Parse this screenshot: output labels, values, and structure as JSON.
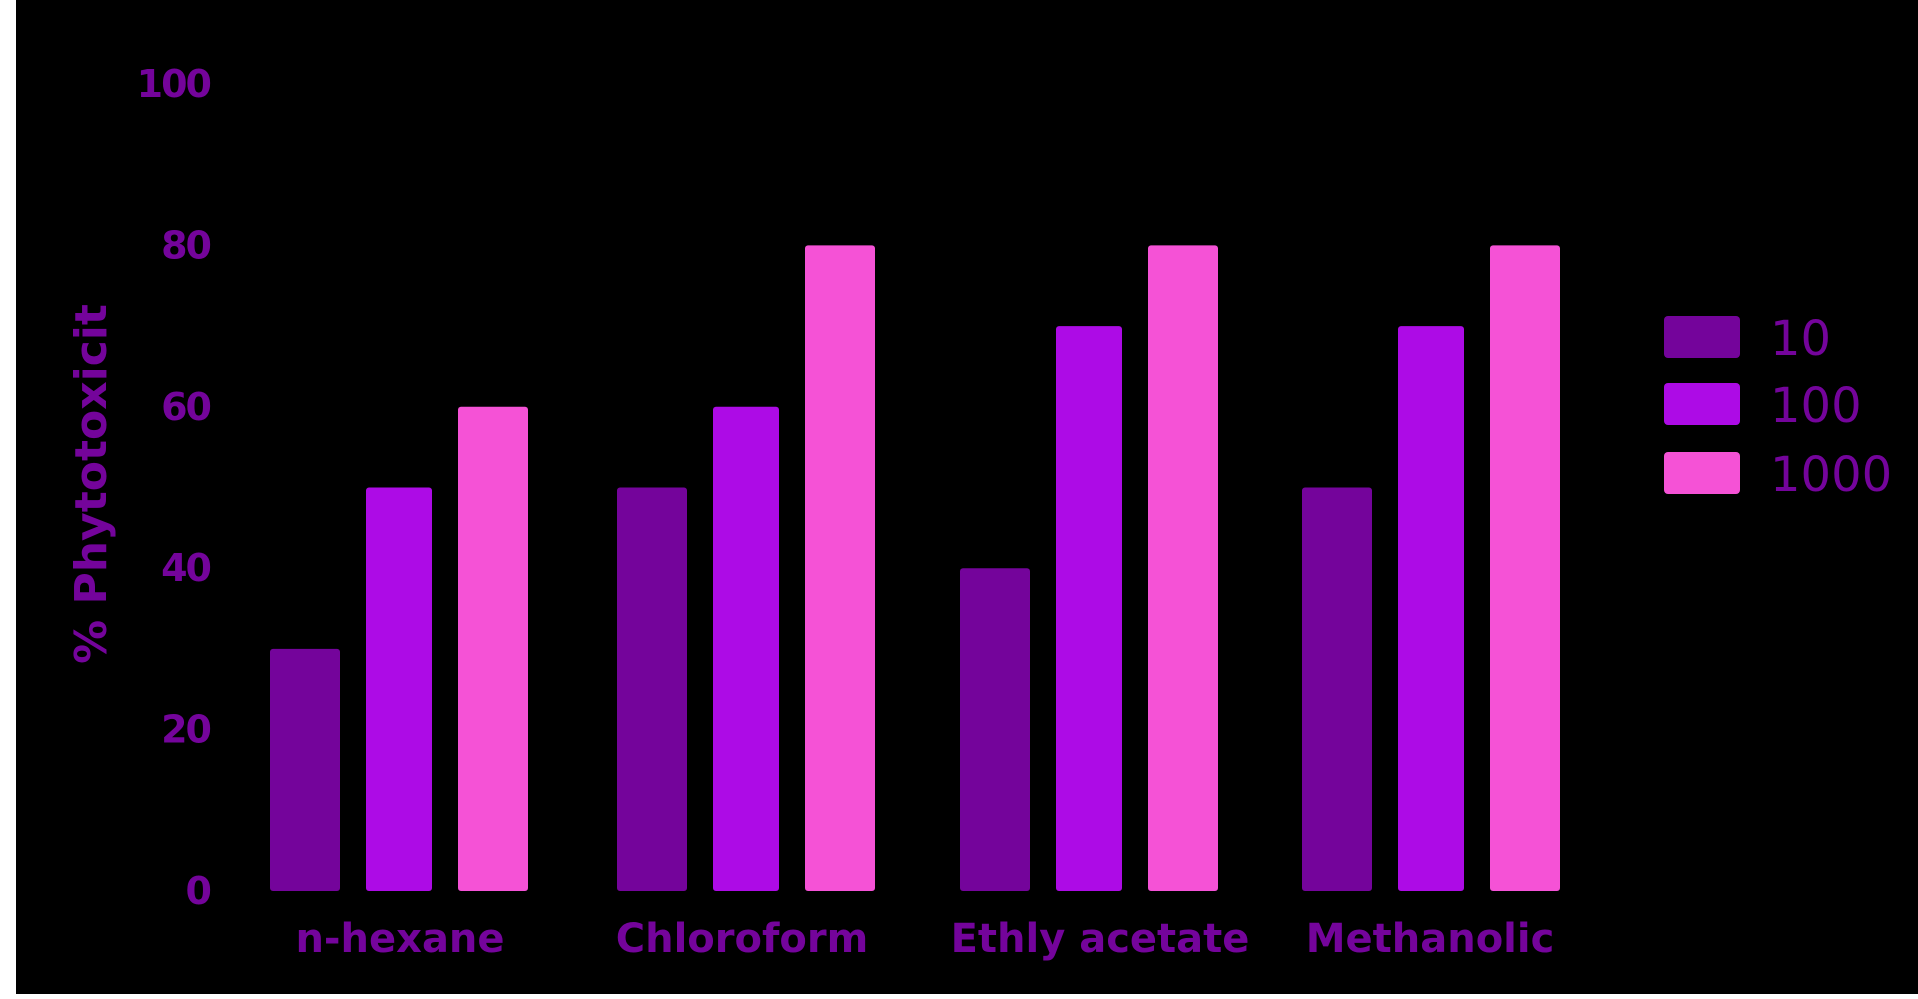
{
  "chart_data": {
    "type": "bar",
    "categories": [
      "n-hexane",
      "Chloroform",
      "Ethly acetate",
      "Methanolic"
    ],
    "series": [
      {
        "name": "10",
        "values": [
          30,
          50,
          40,
          50
        ],
        "color": "#74049b"
      },
      {
        "name": "100",
        "values": [
          50,
          60,
          70,
          70
        ],
        "color": "#ad0be6"
      },
      {
        "name": "1000",
        "values": [
          60,
          80,
          80,
          80
        ],
        "color": "#f552d6"
      }
    ],
    "title": "",
    "xlabel": "",
    "ylabel": "% Phytotoxicit",
    "ylim": [
      0,
      100
    ],
    "yticks": [
      0,
      20,
      40,
      60,
      80,
      100
    ],
    "grid": false,
    "legend_position": "right",
    "colors": {
      "background": "#000000",
      "text": "#74049b"
    }
  }
}
